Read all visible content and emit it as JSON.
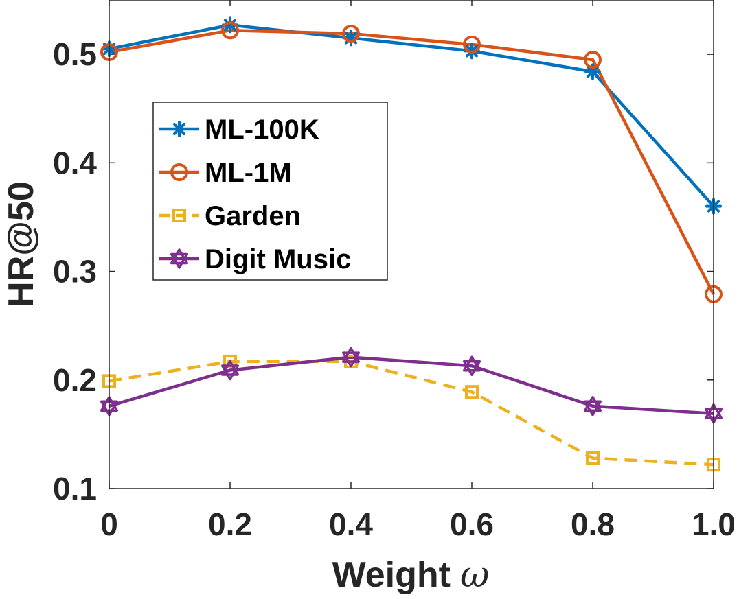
{
  "chart_data": {
    "type": "line",
    "x": [
      0,
      0.2,
      0.4,
      0.6,
      0.8,
      1.0
    ],
    "xtick_labels": [
      "0",
      "0.2",
      "0.4",
      "0.6",
      "0.8",
      "1.0"
    ],
    "ytick_labels": [
      "0.1",
      "0.2",
      "0.3",
      "0.4",
      "0.5"
    ],
    "yticks": [
      0.1,
      0.2,
      0.3,
      0.4,
      0.5
    ],
    "xlim": [
      0,
      1.0
    ],
    "ylim": [
      0.1,
      0.55
    ],
    "xlabel_text": "Weight",
    "xlabel_symbol": "ω",
    "ylabel": "HR@50",
    "legend_position": "upper-left-inside",
    "series": [
      {
        "name": "ML-100K",
        "color": "#0072BD",
        "marker": "asterisk",
        "dashed": false,
        "values": [
          0.505,
          0.527,
          0.515,
          0.503,
          0.484,
          0.36
        ]
      },
      {
        "name": "ML-1M",
        "color": "#D95319",
        "marker": "circle",
        "dashed": false,
        "values": [
          0.502,
          0.522,
          0.519,
          0.509,
          0.495,
          0.279
        ]
      },
      {
        "name": "Garden",
        "color": "#EDB120",
        "marker": "square",
        "dashed": true,
        "values": [
          0.199,
          0.217,
          0.217,
          0.189,
          0.128,
          0.122
        ]
      },
      {
        "name": "Digit Music",
        "color": "#7E2F8E",
        "marker": "hexagram",
        "dashed": false,
        "values": [
          0.176,
          0.209,
          0.221,
          0.213,
          0.176,
          0.169
        ]
      }
    ]
  }
}
